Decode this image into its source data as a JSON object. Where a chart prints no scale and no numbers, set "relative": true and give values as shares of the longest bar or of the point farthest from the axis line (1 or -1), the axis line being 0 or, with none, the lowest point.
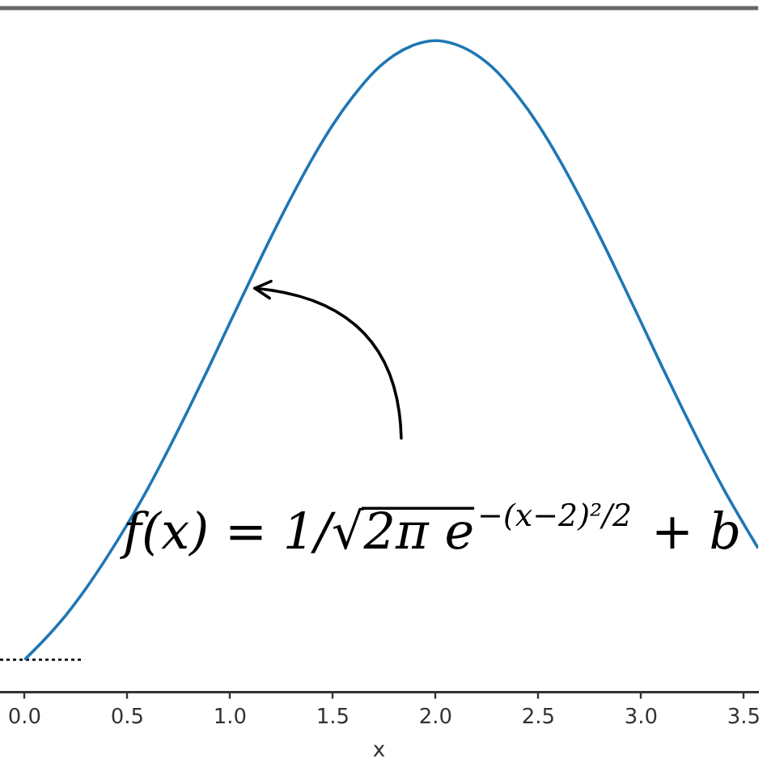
{
  "chart_data": {
    "type": "line",
    "relative": true,
    "xlabel": "x",
    "x": [
      0,
      0.1,
      0.2,
      0.3,
      0.4,
      0.5,
      0.6,
      0.7,
      0.8,
      0.9,
      1.0,
      1.1,
      1.2,
      1.3,
      1.4,
      1.5,
      1.6,
      1.7,
      1.8,
      1.9,
      2.0,
      2.1,
      2.2,
      2.3,
      2.4,
      2.5,
      2.6,
      2.7,
      2.8,
      2.9,
      3.0,
      3.1,
      3.2,
      3.3,
      3.4,
      3.5,
      3.57
    ],
    "series": [
      {
        "color": "#1f77b4",
        "values": [
          0.05,
          0.082,
          0.118,
          0.16,
          0.207,
          0.258,
          0.313,
          0.373,
          0.436,
          0.501,
          0.568,
          0.634,
          0.699,
          0.761,
          0.819,
          0.871,
          0.915,
          0.952,
          0.978,
          0.994,
          1.0,
          0.994,
          0.978,
          0.952,
          0.915,
          0.871,
          0.819,
          0.761,
          0.699,
          0.634,
          0.568,
          0.501,
          0.436,
          0.373,
          0.313,
          0.258,
          0.221
        ]
      },
      {
        "x": [
          -0.12,
          0.29
        ],
        "values": [
          0.05,
          0.05
        ],
        "color": "#000000",
        "line_style": "dotted"
      }
    ],
    "xlim": [
      -0.12,
      3.57
    ],
    "xticks": [
      {
        "value": 0,
        "label": "0.0"
      },
      0.5,
      {
        "value": 1,
        "label": "1.0"
      },
      1.5,
      {
        "value": 2,
        "label": "2.0"
      },
      2.5,
      {
        "value": 3,
        "label": "3.0"
      },
      3.5
    ],
    "annotations": [
      {
        "text": "f(x) = 1/√2π e$^{−(x−2)²/2}$ + b",
        "x": 1.12,
        "y": 0.62
      }
    ]
  }
}
